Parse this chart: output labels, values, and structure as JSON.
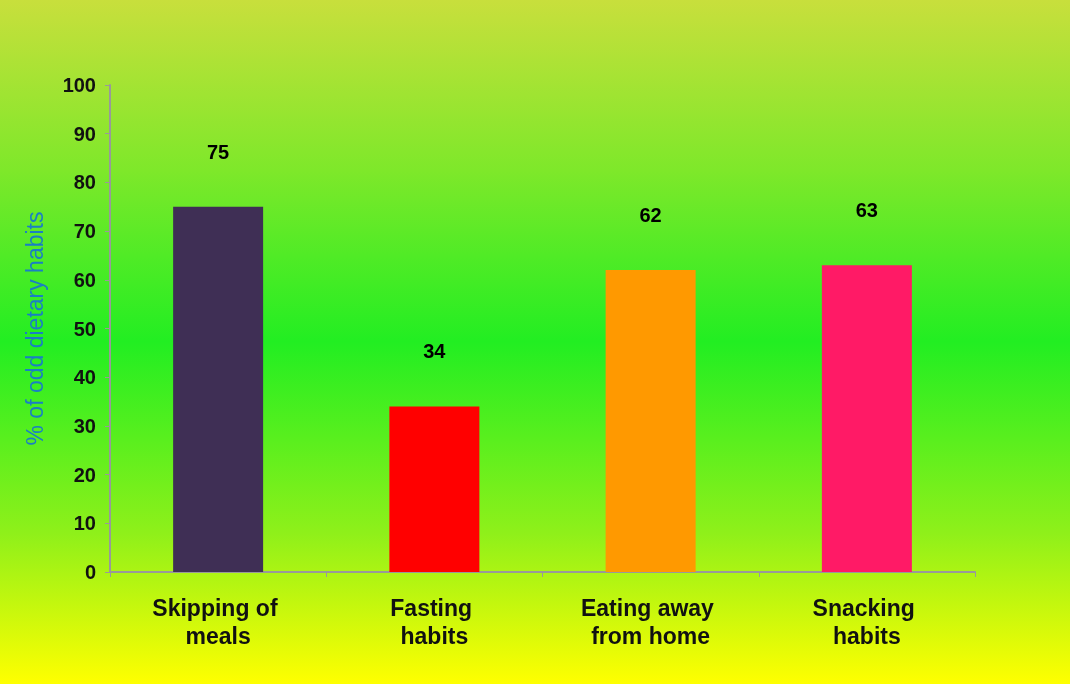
{
  "chart_data": {
    "type": "bar",
    "categories": [
      "Skipping of meals",
      "Fasting habits",
      "Eating away from home",
      "Snacking habits"
    ],
    "values": [
      75,
      34,
      62,
      63
    ],
    "colors": [
      "#3f2f55",
      "#ff0000",
      "#ff9900",
      "#ff1a66"
    ],
    "ylabel": "% of odd dietary habits",
    "ylim": [
      0,
      100
    ],
    "yticks": [
      0,
      10,
      20,
      30,
      40,
      50,
      60,
      70,
      80,
      90,
      100
    ],
    "data_labels": true,
    "grid": false
  }
}
